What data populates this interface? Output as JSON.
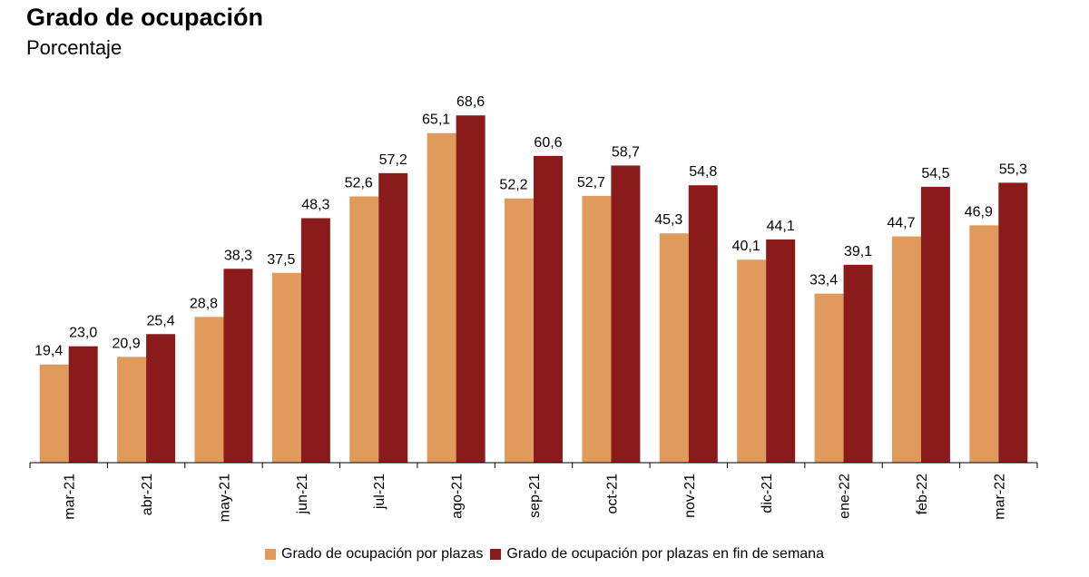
{
  "chart_data": {
    "type": "bar",
    "title": "Grado de ocupación",
    "subtitle": "Porcentaje",
    "categories": [
      "mar-21",
      "abr-21",
      "may-21",
      "jun-21",
      "jul-21",
      "ago-21",
      "sep-21",
      "oct-21",
      "nov-21",
      "dic-21",
      "ene-22",
      "feb-22",
      "mar-22"
    ],
    "series": [
      {
        "name": "Grado de ocupación por plazas",
        "color": "#E09A5B",
        "values": [
          19.4,
          20.9,
          28.8,
          37.5,
          52.6,
          65.1,
          52.2,
          52.7,
          45.3,
          40.1,
          33.4,
          44.7,
          46.9
        ],
        "labels": [
          "19,4",
          "20,9",
          "28,8",
          "37,5",
          "52,6",
          "65,1",
          "52,2",
          "52,7",
          "45,3",
          "40,1",
          "33,4",
          "44,7",
          "46,9"
        ]
      },
      {
        "name": "Grado de ocupación por plazas en fin de semana",
        "color": "#8B1A1A",
        "values": [
          23.0,
          25.4,
          38.3,
          48.3,
          57.2,
          68.6,
          60.6,
          58.7,
          54.8,
          44.1,
          39.1,
          54.5,
          55.3
        ],
        "labels": [
          "23,0",
          "25,4",
          "38,3",
          "48,3",
          "57,2",
          "68,6",
          "60,6",
          "58,7",
          "54,8",
          "44,1",
          "39,1",
          "54,5",
          "55,3"
        ]
      }
    ],
    "ylim": [
      0,
      100
    ],
    "grid": false,
    "legend_position": "bottom"
  }
}
